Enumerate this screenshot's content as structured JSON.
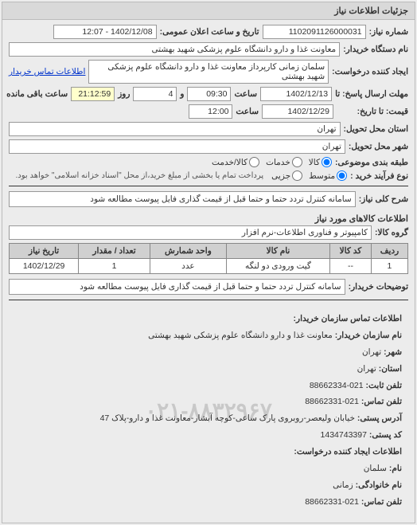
{
  "panel_title": "جزئیات اطلاعات نیاز",
  "fields": {
    "need_no_label": "شماره نیاز:",
    "need_no": "1102091126000031",
    "announce_label": "تاریخ و ساعت اعلان عمومی:",
    "announce": "1402/12/08 - 12:07",
    "buyer_org_label": "نام دستگاه خریدار:",
    "buyer_org": "معاونت غذا و دارو دانشگاه علوم پزشکی شهید بهشتی",
    "creator_label": "ایجاد کننده درخواست:",
    "creator": "سلمان زمانی کارپرداز معاونت غذا و دارو دانشگاه علوم پزشکی شهید بهشتی",
    "contact_link": "اطلاعات تماس خریدار",
    "deadline_label": "مهلت ارسال پاسخ: تا",
    "deadline_date": "1402/12/13",
    "deadline_hour_label": "ساعت",
    "deadline_hour": "09:30",
    "days_label": "و",
    "days": "4",
    "days_after": "روز",
    "remain_hour": "21:12:59",
    "remain_label": "ساعت باقی مانده",
    "price_valid_label": "قیمت: تا تاریخ:",
    "price_valid_date": "1402/12/29",
    "price_valid_hour": "12:00",
    "province_label": "استان محل تحویل:",
    "province": "تهران",
    "city_label": "شهر محل تحویل:",
    "city": "تهران",
    "type_label": "طبقه بندی موضوعی:",
    "type_kala": "کالا",
    "type_khadamat": "خدمات",
    "type_both": "کالا/خدمت",
    "process_label": "نوع فرآیند خرید :",
    "process_medium": "متوسط",
    "process_partial": "جزیی",
    "process_note": "پرداخت تمام یا بخشی از مبلغ خرید،از محل \"اسناد خزانه اسلامی\" خواهد بود.",
    "keywords_label": "شرح کلی نیاز:",
    "keywords": "سامانه کنترل تردد حتما و حتما قبل از قیمت گذاری فایل پیوست مطالعه شود",
    "goods_header": "اطلاعات کالاهای مورد نیاز",
    "group_label": "گروه کالا:",
    "group": "کامپیوتر و فناوری اطلاعات-نرم افزار",
    "desc_label": "توضیحات خریدار:",
    "desc": "سامانه کنترل تردد حتما و حتما قبل از قیمت گذاری فایل پیوست مطالعه شود"
  },
  "table": {
    "headers": [
      "ردیف",
      "کد کالا",
      "نام کالا",
      "واحد شمارش",
      "تعداد / مقدار",
      "تاریخ نیاز"
    ],
    "rows": [
      [
        "1",
        "--",
        "گیت ورودی دو لنگه",
        "عدد",
        "1",
        "1402/12/29"
      ]
    ]
  },
  "contact": {
    "header": "اطلاعات تماس سازمان خریدار:",
    "org_label": "نام سازمان خریدار:",
    "org": "معاونت غذا و دارو دانشگاه علوم پزشکی شهید بهشتی",
    "city_label": "شهر:",
    "city": "تهران",
    "province_label": "استان:",
    "province": "تهران",
    "phone_label": "تلفن ثابت:",
    "phone": "021-88662334",
    "fax_label": "تلفن تماس:",
    "fax": "021-88662331",
    "address_label": "آدرس پستی:",
    "address": "خیابان ولیعصر-روبروی پارک ساعی-کوچه آبشار-معاونت غذا و دارو-پلاک 47",
    "postal_label": "کد پستی:",
    "postal": "1434743397",
    "creator_header": "اطلاعات ایجاد کننده درخواست:",
    "name_label": "نام:",
    "name": "سلمان",
    "family_label": "نام خانوادگی:",
    "family": "زمانی",
    "tel_label": "تلفن تماس:",
    "tel": "021-88662331",
    "watermark": "۰۲۱-۸۸۳۲۹۶۷"
  }
}
